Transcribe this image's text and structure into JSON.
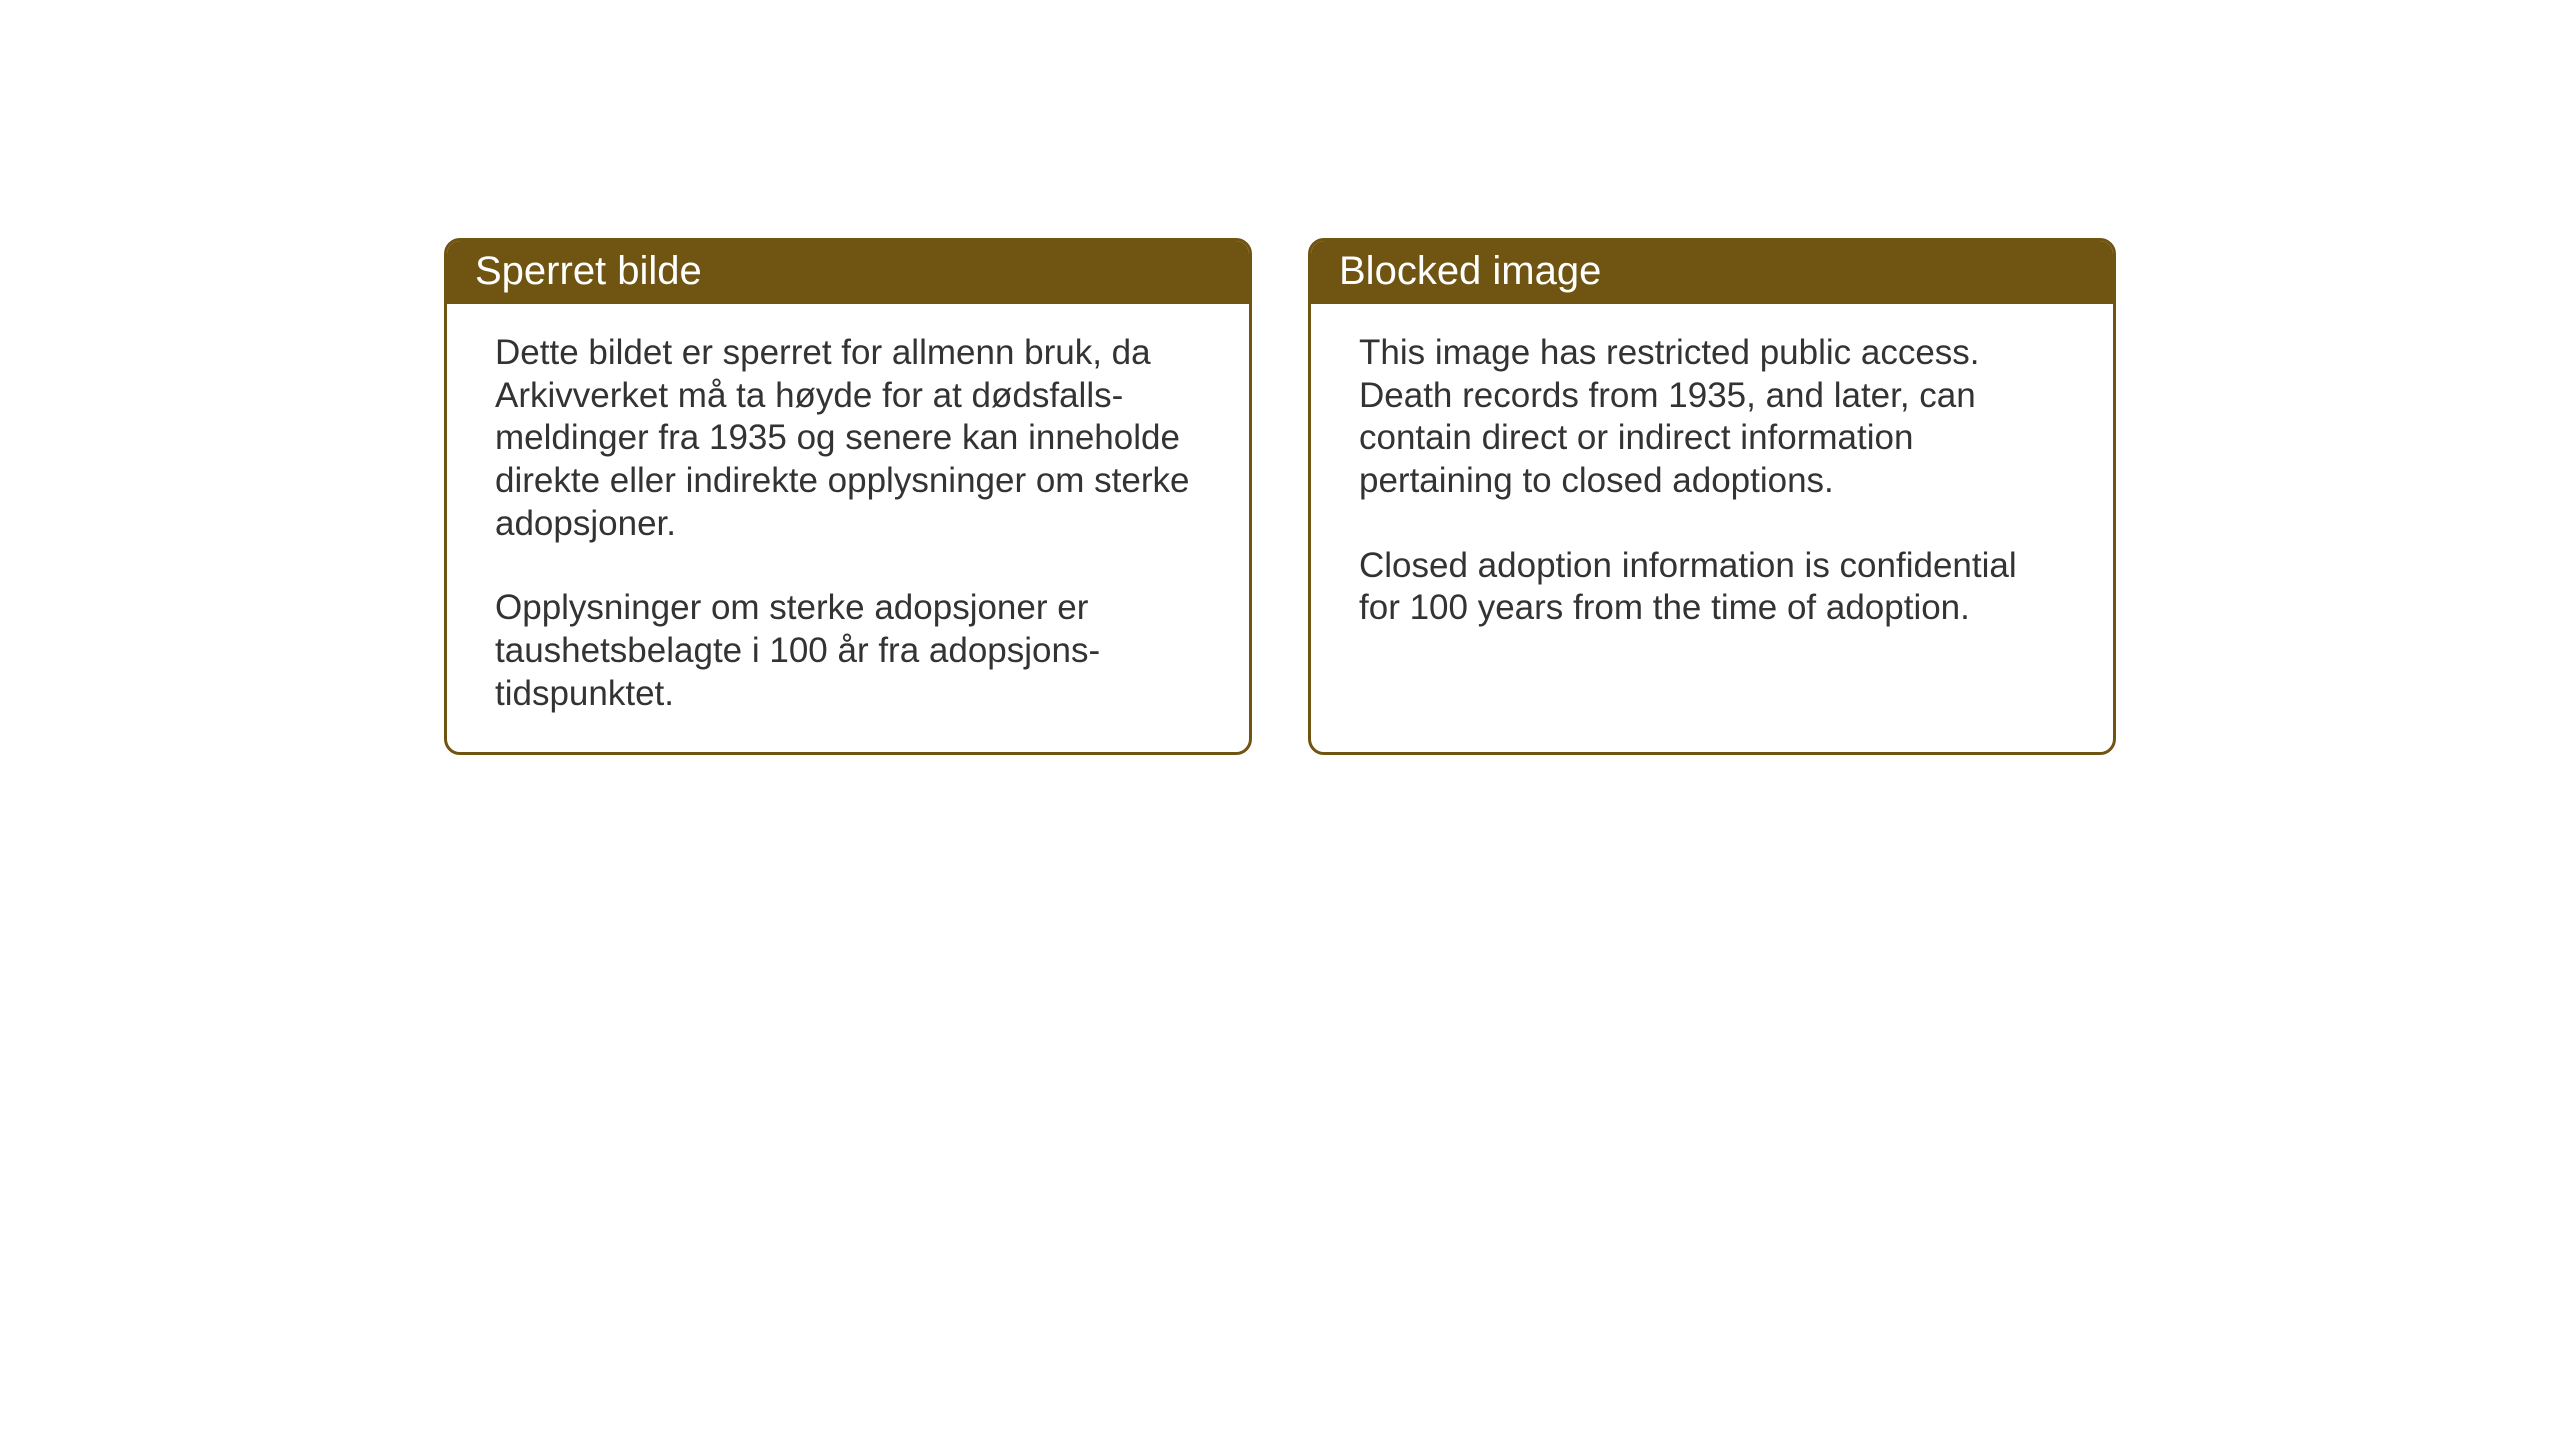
{
  "cards": [
    {
      "title": "Sperret bilde",
      "paragraph1": "Dette bildet er sperret for allmenn bruk, da Arkivverket må ta høyde for at dødsfalls-meldinger fra 1935 og senere kan inneholde direkte eller indirekte opplysninger om sterke adopsjoner.",
      "paragraph2": "Opplysninger om sterke adopsjoner er taushetsbelagte i 100 år fra adopsjons-tidspunktet."
    },
    {
      "title": "Blocked image",
      "paragraph1": "This image has restricted public access. Death records from 1935, and later, can contain direct or indirect information pertaining to closed adoptions.",
      "paragraph2": "Closed adoption information is confidential for 100 years from the time of adoption."
    }
  ],
  "styling": {
    "header_background_color": "#6f5412",
    "header_text_color": "#ffffff",
    "border_color": "#6f5412",
    "body_text_color": "#333333",
    "card_background_color": "#ffffff",
    "page_background_color": "#ffffff",
    "border_radius": 16,
    "border_width": 3,
    "header_fontsize": 40,
    "body_fontsize": 35
  }
}
